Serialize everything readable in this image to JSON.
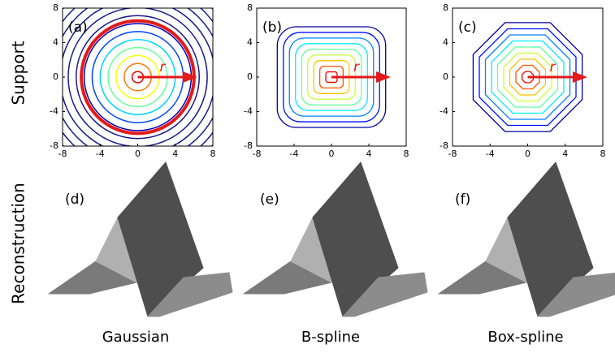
{
  "row_labels": [
    "Support",
    "Reconstruction"
  ],
  "panels": [
    {
      "label": "(a)",
      "radius_label": "r",
      "xlim": [
        -8,
        8
      ],
      "ylim": [
        -8,
        8
      ],
      "xticks": [
        -8,
        -4,
        0,
        4,
        8
      ],
      "yticks": [
        -8,
        -4,
        0,
        4,
        8
      ]
    },
    {
      "label": "(b)",
      "radius_label": "r",
      "xlim": [
        -8,
        8
      ],
      "ylim": [
        -8,
        8
      ],
      "xticks": [
        -8,
        -4,
        0,
        4,
        8
      ],
      "yticks": [
        -8,
        -4,
        0,
        4,
        8
      ]
    },
    {
      "label": "(c)",
      "radius_label": "r",
      "xlim": [
        -8,
        8
      ],
      "ylim": [
        -8,
        8
      ],
      "xticks": [
        -8,
        -4,
        0,
        4,
        8
      ],
      "yticks": [
        -8,
        -4,
        0,
        4,
        8
      ]
    }
  ],
  "surfaces": [
    {
      "label": "(d)",
      "caption": "Gaussian"
    },
    {
      "label": "(e)",
      "caption": "B-spline"
    },
    {
      "label": "(f)",
      "caption": "Box-spline"
    }
  ]
}
